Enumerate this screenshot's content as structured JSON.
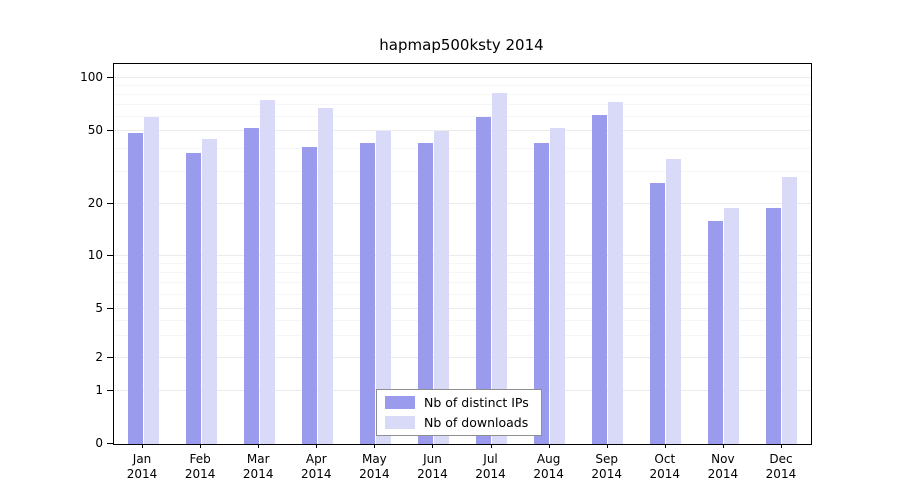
{
  "chart_data": {
    "type": "bar",
    "title": "hapmap500ksty 2014",
    "categories": [
      "Jan 2014",
      "Feb 2014",
      "Mar 2014",
      "Apr 2014",
      "May 2014",
      "Jun 2014",
      "Jul 2014",
      "Aug 2014",
      "Sep 2014",
      "Oct 2014",
      "Nov 2014",
      "Dec 2014"
    ],
    "series": [
      {
        "name": "Nb of distinct IPs",
        "color": "#9b9bee",
        "values": [
          49,
          38,
          52,
          41,
          43,
          43,
          60,
          43,
          62,
          26,
          16,
          19
        ]
      },
      {
        "name": "Nb of downloads",
        "color": "#d9d9f8",
        "values": [
          60,
          45,
          75,
          68,
          50,
          50,
          82,
          52,
          73,
          35,
          19,
          28
        ]
      }
    ],
    "yscale": "log",
    "yticks": [
      0,
      1,
      2,
      5,
      10,
      20,
      50,
      100
    ],
    "minor_gridlines": [
      3,
      4,
      6,
      7,
      8,
      9,
      30,
      40,
      60,
      70,
      80,
      90
    ],
    "ylim": [
      0,
      110
    ],
    "xlabel": "",
    "ylabel": "",
    "grid": true,
    "legend_position": "bottom-center"
  }
}
